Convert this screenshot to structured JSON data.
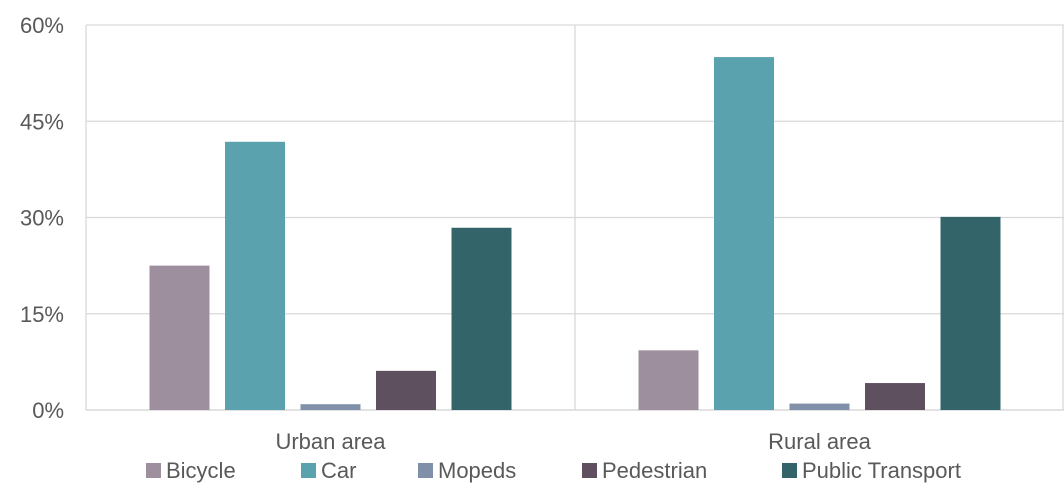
{
  "chart_data": {
    "type": "bar",
    "categories": [
      "Urban area",
      "Rural area"
    ],
    "series": [
      {
        "name": "Bicycle",
        "values": [
          22.5,
          9.3
        ],
        "color": "#9e8f9e"
      },
      {
        "name": "Car",
        "values": [
          41.8,
          55.0
        ],
        "color": "#5aa3ae"
      },
      {
        "name": "Mopeds",
        "values": [
          0.9,
          1.0
        ],
        "color": "#8090a8"
      },
      {
        "name": "Pedestrian",
        "values": [
          6.1,
          4.2
        ],
        "color": "#5f5060"
      },
      {
        "name": "Public Transport",
        "values": [
          28.4,
          30.1
        ],
        "color": "#33646a"
      }
    ],
    "ylim": [
      0,
      60
    ],
    "yticks": [
      0,
      15,
      30,
      45,
      60
    ],
    "ytick_labels": [
      "0%",
      "15%",
      "30%",
      "45%",
      "60%"
    ],
    "grid": true,
    "legend_position": "bottom",
    "title": "",
    "xlabel": "",
    "ylabel": ""
  }
}
